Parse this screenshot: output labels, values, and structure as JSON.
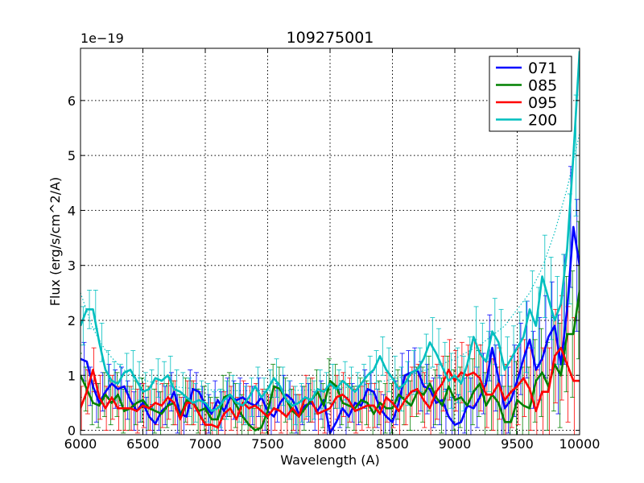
{
  "chart_data": {
    "type": "line",
    "title": "109275001",
    "xlabel": "Wavelength (A)",
    "ylabel": "Flux (erg/s/cm^2/A)",
    "offset_label": "1e−19",
    "xlim": [
      6000,
      10000
    ],
    "ylim": [
      -0.08,
      6.95
    ],
    "xticks": [
      6000,
      6500,
      7000,
      7500,
      8000,
      8500,
      9000,
      9500,
      10000
    ],
    "yticks": [
      0,
      1,
      2,
      3,
      4,
      5,
      6
    ],
    "grid": true,
    "legend_position": "top-right",
    "series": [
      {
        "name": "071",
        "color": "#0000ff",
        "x": [
          6000,
          6050,
          6100,
          6150,
          6200,
          6250,
          6300,
          6350,
          6400,
          6450,
          6500,
          6550,
          6600,
          6650,
          6700,
          6750,
          6800,
          6850,
          6900,
          6950,
          7000,
          7050,
          7100,
          7150,
          7200,
          7250,
          7300,
          7350,
          7400,
          7450,
          7500,
          7550,
          7600,
          7650,
          7700,
          7750,
          7800,
          7850,
          7900,
          7950,
          8000,
          8050,
          8100,
          8150,
          8200,
          8250,
          8300,
          8350,
          8400,
          8450,
          8500,
          8550,
          8600,
          8650,
          8700,
          8750,
          8800,
          8850,
          8900,
          8950,
          9000,
          9050,
          9100,
          9150,
          9200,
          9250,
          9300,
          9350,
          9400,
          9450,
          9500,
          9550,
          9600,
          9650,
          9700,
          9750,
          9800,
          9850,
          9900,
          9950,
          10000
        ],
        "y": [
          1.3,
          1.25,
          0.8,
          0.5,
          0.7,
          0.85,
          0.75,
          0.8,
          0.55,
          0.35,
          0.5,
          0.25,
          0.12,
          0.35,
          0.45,
          0.7,
          0.3,
          0.25,
          0.75,
          0.7,
          0.45,
          0.3,
          0.55,
          0.35,
          0.6,
          0.55,
          0.6,
          0.5,
          0.45,
          0.6,
          0.35,
          0.25,
          0.5,
          0.65,
          0.55,
          0.3,
          0.45,
          0.5,
          0.35,
          0.55,
          -0.05,
          0.15,
          0.4,
          0.25,
          0.5,
          0.45,
          0.75,
          0.7,
          0.4,
          0.25,
          0.15,
          0.5,
          1.0,
          1.05,
          1.1,
          0.8,
          0.75,
          0.5,
          0.55,
          0.25,
          0.1,
          0.15,
          0.45,
          0.4,
          0.6,
          0.85,
          1.5,
          0.95,
          0.4,
          0.55,
          0.9,
          1.3,
          1.65,
          1.1,
          1.3,
          1.7,
          1.9,
          1.2,
          2.2,
          3.7,
          3.0
        ],
        "err": [
          0.35,
          0.35,
          0.35,
          0.35,
          0.35,
          0.35,
          0.35,
          0.35,
          0.35,
          0.35,
          0.35,
          0.35,
          0.35,
          0.35,
          0.35,
          0.35,
          0.35,
          0.35,
          0.35,
          0.35,
          0.35,
          0.35,
          0.35,
          0.35,
          0.35,
          0.35,
          0.35,
          0.35,
          0.35,
          0.35,
          0.35,
          0.35,
          0.35,
          0.35,
          0.35,
          0.35,
          0.35,
          0.35,
          0.35,
          0.35,
          0.35,
          0.35,
          0.35,
          0.35,
          0.35,
          0.35,
          0.35,
          0.35,
          0.35,
          0.4,
          0.4,
          0.4,
          0.4,
          0.4,
          0.4,
          0.45,
          0.45,
          0.45,
          0.45,
          0.5,
          0.5,
          0.5,
          0.5,
          0.55,
          0.55,
          0.55,
          0.6,
          0.6,
          0.6,
          0.6,
          0.65,
          0.65,
          0.7,
          0.7,
          0.75,
          0.75,
          0.8,
          0.9,
          1.0,
          1.1,
          1.2
        ]
      },
      {
        "name": "085",
        "color": "#008000",
        "x": [
          6000,
          6050,
          6100,
          6150,
          6200,
          6250,
          6300,
          6350,
          6400,
          6450,
          6500,
          6550,
          6600,
          6650,
          6700,
          6750,
          6800,
          6850,
          6900,
          6950,
          7000,
          7050,
          7100,
          7150,
          7200,
          7250,
          7300,
          7350,
          7400,
          7450,
          7500,
          7550,
          7600,
          7650,
          7700,
          7750,
          7800,
          7850,
          7900,
          7950,
          8000,
          8050,
          8100,
          8150,
          8200,
          8250,
          8300,
          8350,
          8400,
          8450,
          8500,
          8550,
          8600,
          8650,
          8700,
          8750,
          8800,
          8850,
          8900,
          8950,
          9000,
          9050,
          9100,
          9150,
          9200,
          9250,
          9300,
          9350,
          9400,
          9450,
          9500,
          9550,
          9600,
          9650,
          9700,
          9750,
          9800,
          9850,
          9900,
          9950,
          10000
        ],
        "y": [
          1.0,
          0.75,
          0.5,
          0.45,
          0.65,
          0.5,
          0.65,
          0.35,
          0.4,
          0.5,
          0.55,
          0.4,
          0.35,
          0.3,
          0.45,
          0.5,
          0.25,
          0.55,
          0.5,
          0.35,
          0.4,
          0.2,
          0.2,
          0.6,
          0.65,
          0.45,
          0.25,
          0.1,
          0.0,
          0.05,
          0.35,
          0.8,
          0.75,
          0.55,
          0.35,
          0.25,
          0.4,
          0.55,
          0.7,
          0.45,
          0.9,
          0.8,
          0.5,
          0.45,
          0.4,
          0.55,
          0.5,
          0.3,
          0.5,
          0.4,
          0.4,
          0.65,
          0.55,
          0.45,
          0.7,
          0.65,
          0.85,
          0.6,
          0.45,
          0.8,
          0.55,
          0.6,
          0.45,
          0.7,
          0.85,
          0.45,
          0.65,
          0.5,
          0.15,
          0.15,
          0.55,
          0.45,
          0.4,
          0.9,
          1.05,
          0.8,
          1.2,
          1.0,
          1.75,
          1.75,
          2.55
        ],
        "err": [
          0.4,
          0.4,
          0.4,
          0.4,
          0.4,
          0.4,
          0.4,
          0.4,
          0.4,
          0.4,
          0.4,
          0.4,
          0.4,
          0.4,
          0.4,
          0.4,
          0.4,
          0.4,
          0.4,
          0.4,
          0.4,
          0.4,
          0.4,
          0.4,
          0.4,
          0.4,
          0.4,
          0.4,
          0.4,
          0.4,
          0.4,
          0.4,
          0.4,
          0.4,
          0.4,
          0.4,
          0.4,
          0.4,
          0.4,
          0.4,
          0.4,
          0.4,
          0.4,
          0.4,
          0.4,
          0.4,
          0.4,
          0.4,
          0.4,
          0.45,
          0.45,
          0.45,
          0.45,
          0.45,
          0.45,
          0.5,
          0.5,
          0.5,
          0.5,
          0.55,
          0.55,
          0.55,
          0.55,
          0.6,
          0.6,
          0.6,
          0.65,
          0.65,
          0.65,
          0.65,
          0.7,
          0.7,
          0.75,
          0.75,
          0.8,
          0.8,
          0.85,
          0.95,
          1.05,
          1.15,
          1.25
        ]
      },
      {
        "name": "095",
        "color": "#ff0000",
        "x": [
          6000,
          6050,
          6100,
          6150,
          6200,
          6250,
          6300,
          6350,
          6400,
          6450,
          6500,
          6550,
          6600,
          6650,
          6700,
          6750,
          6800,
          6850,
          6900,
          6950,
          7000,
          7050,
          7100,
          7150,
          7200,
          7250,
          7300,
          7350,
          7400,
          7450,
          7500,
          7550,
          7600,
          7650,
          7700,
          7750,
          7800,
          7850,
          7900,
          7950,
          8000,
          8050,
          8100,
          8150,
          8200,
          8250,
          8300,
          8350,
          8400,
          8450,
          8500,
          8550,
          8600,
          8650,
          8700,
          8750,
          8800,
          8850,
          8900,
          8950,
          9000,
          9050,
          9100,
          9150,
          9200,
          9250,
          9300,
          9350,
          9400,
          9450,
          9500,
          9550,
          9600,
          9650,
          9700,
          9750,
          9800,
          9850,
          9900,
          9950,
          10000
        ],
        "y": [
          0.4,
          0.7,
          1.1,
          0.6,
          0.4,
          0.6,
          0.4,
          0.4,
          0.4,
          0.35,
          0.45,
          0.4,
          0.5,
          0.45,
          0.6,
          0.5,
          0.2,
          0.5,
          0.5,
          0.3,
          0.1,
          0.1,
          0.05,
          0.3,
          0.4,
          0.2,
          0.5,
          0.4,
          0.45,
          0.35,
          0.25,
          0.4,
          0.35,
          0.25,
          0.4,
          0.25,
          0.6,
          0.55,
          0.3,
          0.35,
          0.4,
          0.6,
          0.65,
          0.55,
          0.35,
          0.4,
          0.45,
          0.45,
          0.3,
          0.6,
          0.5,
          0.35,
          0.55,
          0.7,
          0.75,
          0.55,
          0.4,
          0.7,
          0.85,
          1.1,
          0.9,
          1.05,
          1.0,
          1.05,
          0.95,
          0.65,
          0.65,
          0.85,
          0.55,
          0.7,
          0.8,
          0.95,
          0.75,
          0.35,
          0.7,
          0.7,
          1.35,
          1.5,
          1.2,
          0.9,
          0.9
        ],
        "err": [
          0.4,
          0.4,
          0.4,
          0.4,
          0.4,
          0.4,
          0.4,
          0.4,
          0.4,
          0.4,
          0.4,
          0.4,
          0.4,
          0.4,
          0.4,
          0.4,
          0.4,
          0.4,
          0.4,
          0.4,
          0.4,
          0.4,
          0.4,
          0.4,
          0.4,
          0.4,
          0.4,
          0.4,
          0.4,
          0.4,
          0.4,
          0.4,
          0.4,
          0.4,
          0.4,
          0.4,
          0.4,
          0.4,
          0.4,
          0.4,
          0.4,
          0.4,
          0.4,
          0.4,
          0.4,
          0.4,
          0.4,
          0.4,
          0.4,
          0.45,
          0.45,
          0.45,
          0.45,
          0.45,
          0.45,
          0.5,
          0.5,
          0.5,
          0.5,
          0.55,
          0.55,
          0.55,
          0.55,
          0.6,
          0.6,
          0.6,
          0.65,
          0.65,
          0.65,
          0.65,
          0.7,
          0.7,
          0.75,
          0.75,
          0.8,
          0.8,
          0.85,
          0.95,
          1.05,
          1.15,
          1.25
        ]
      },
      {
        "name": "200",
        "color": "#00bfbf",
        "x": [
          6000,
          6050,
          6100,
          6150,
          6200,
          6250,
          6300,
          6350,
          6400,
          6450,
          6500,
          6550,
          6600,
          6650,
          6700,
          6750,
          6800,
          6850,
          6900,
          6950,
          7000,
          7050,
          7100,
          7150,
          7200,
          7250,
          7300,
          7350,
          7400,
          7450,
          7500,
          7550,
          7600,
          7650,
          7700,
          7750,
          7800,
          7850,
          7900,
          7950,
          8000,
          8050,
          8100,
          8150,
          8200,
          8250,
          8300,
          8350,
          8400,
          8450,
          8500,
          8550,
          8600,
          8650,
          8700,
          8750,
          8800,
          8850,
          8900,
          8950,
          9000,
          9050,
          9100,
          9150,
          9200,
          9250,
          9300,
          9350,
          9400,
          9450,
          9500,
          9550,
          9600,
          9650,
          9700,
          9750,
          9800,
          9850,
          9900,
          9950,
          10000
        ],
        "y": [
          1.9,
          2.2,
          2.2,
          1.6,
          1.1,
          0.9,
          0.85,
          1.05,
          1.1,
          0.9,
          0.7,
          0.75,
          0.95,
          0.9,
          1.0,
          0.75,
          0.7,
          0.6,
          0.5,
          0.55,
          0.5,
          0.35,
          0.4,
          0.55,
          0.65,
          0.5,
          0.45,
          0.6,
          0.8,
          0.6,
          0.75,
          0.95,
          0.8,
          0.55,
          0.45,
          0.5,
          0.6,
          0.55,
          0.75,
          0.7,
          0.85,
          0.75,
          0.9,
          0.8,
          0.7,
          0.85,
          1.0,
          1.1,
          1.35,
          1.1,
          0.95,
          0.75,
          0.85,
          1.05,
          1.1,
          1.3,
          1.6,
          1.4,
          1.15,
          0.9,
          1.0,
          0.85,
          1.2,
          1.7,
          1.4,
          1.25,
          1.8,
          1.6,
          1.1,
          1.3,
          1.5,
          1.7,
          2.2,
          1.9,
          2.8,
          2.4,
          2.0,
          2.3,
          3.3,
          5.0,
          6.9
        ],
        "err": [
          0.35,
          0.35,
          0.35,
          0.35,
          0.35,
          0.35,
          0.35,
          0.35,
          0.35,
          0.35,
          0.35,
          0.35,
          0.35,
          0.35,
          0.35,
          0.35,
          0.35,
          0.35,
          0.35,
          0.35,
          0.35,
          0.35,
          0.35,
          0.35,
          0.35,
          0.35,
          0.35,
          0.35,
          0.35,
          0.35,
          0.35,
          0.35,
          0.35,
          0.35,
          0.35,
          0.35,
          0.35,
          0.35,
          0.35,
          0.35,
          0.35,
          0.35,
          0.35,
          0.35,
          0.35,
          0.35,
          0.35,
          0.35,
          0.35,
          0.4,
          0.4,
          0.4,
          0.4,
          0.4,
          0.4,
          0.45,
          0.45,
          0.45,
          0.45,
          0.5,
          0.5,
          0.5,
          0.5,
          0.55,
          0.55,
          0.55,
          0.6,
          0.6,
          0.6,
          0.6,
          0.65,
          0.65,
          0.7,
          0.7,
          0.75,
          0.75,
          0.8,
          0.9,
          1.0,
          1.1,
          1.2
        ]
      }
    ],
    "reference_curve": {
      "color": "#00bfbf",
      "style": "dotted",
      "x": [
        6000,
        6100,
        6200,
        6300,
        6400,
        6600,
        6800,
        7000,
        7200,
        7400,
        7600,
        7800,
        8000,
        8200,
        8400,
        8600,
        8800,
        9000,
        9200,
        9400,
        9600,
        9700,
        9800,
        9900,
        10000
      ],
      "y": [
        2.5,
        1.85,
        1.45,
        1.2,
        1.0,
        0.85,
        0.78,
        0.74,
        0.72,
        0.72,
        0.72,
        0.73,
        0.75,
        0.8,
        0.88,
        0.98,
        1.12,
        1.3,
        1.55,
        1.9,
        2.5,
        2.95,
        3.6,
        4.4,
        5.4
      ]
    }
  }
}
